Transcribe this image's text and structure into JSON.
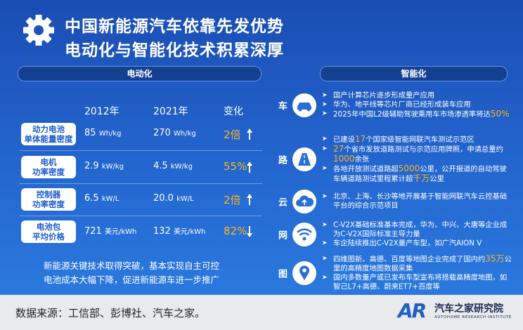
{
  "header": {
    "title": [
      "中国新能源汽车依靠先发优势",
      "电动化与智能化技术积累深厚"
    ]
  },
  "electrification": {
    "heading": "电动化",
    "columns": [
      "2012年",
      "2021年",
      "变化"
    ],
    "rows": [
      {
        "label": [
          "动力电池",
          "单体能量密度"
        ],
        "cells": [
          {
            "value": "85",
            "unit": "Wh/kg"
          },
          {
            "value": "270",
            "unit": "Wh/kg"
          }
        ],
        "change": "2倍",
        "trend": "up"
      },
      {
        "label": [
          "电机",
          "功率密度"
        ],
        "cells": [
          {
            "value": "2.9",
            "unit": "kW/kg"
          },
          {
            "value": "4.5",
            "unit": "kW/kg"
          }
        ],
        "change": "55%",
        "trend": "up"
      },
      {
        "label": [
          "控制器",
          "功率密度"
        ],
        "cells": [
          {
            "value": "6.5",
            "unit": "kW/L"
          },
          {
            "value": "20.0",
            "unit": "kW/L"
          }
        ],
        "change": "2倍",
        "trend": "up"
      },
      {
        "label": [
          "电池包",
          "平均价格"
        ],
        "cells": [
          {
            "value": "721",
            "unit": "美元/kWh"
          },
          {
            "value": "132",
            "unit": "美元/kWh"
          }
        ],
        "change": "82%",
        "trend": "down"
      }
    ],
    "summary": [
      "新能源关键技术取得突破，基本实现自主可控",
      "电池成本大幅下降，促进新能源车进一步推广"
    ]
  },
  "intelligence": {
    "heading": "智能化",
    "rows": [
      {
        "label": "车",
        "bullets": [
          [
            "国产计算芯片逐步形成量产应用"
          ],
          [
            "华为、地平线等芯片厂商已经形成装车应用"
          ],
          [
            "2025年中国L2级辅助驾驶乘用车市场渗透率将达",
            "50%"
          ]
        ]
      },
      {
        "label": "路",
        "bullets": [
          [
            "已建设",
            "17",
            "个国家级智能网联汽车测试示范区"
          ],
          [
            "",
            "27",
            "个省市发放道路测试与示范应用牌照，申请总量约",
            "1000",
            "余张"
          ],
          [
            "各地开放测试道路超",
            "5000",
            "公里，公开报道的自动驾驶车辆道路测试里程累计超",
            "千万",
            "公里"
          ]
        ]
      },
      {
        "label": "云",
        "bullets": [
          [
            "北京、上海、长沙等地开展基于智能网联汽车云控基础平台的综合示范项目"
          ]
        ]
      },
      {
        "label": "网",
        "bullets": [
          [
            "C-V2X基础标准基本完成，华为、中兴、大唐等企业成为C-V2X国际标准主导力量"
          ],
          [
            "车企陆续推出C-V2X量产车型，如广汽AION V"
          ]
        ]
      },
      {
        "label": "图",
        "bullets": [
          [
            "四维图新、高德、百度等地图企业完成了国内约",
            "35万",
            "公里的高精度地图数据采集"
          ],
          [
            "国内多数量产或已发布车型宣布将搭载高精度地图，如智己L7+高德、蔚来ET7+百度等"
          ]
        ]
      }
    ]
  },
  "footer": {
    "source": "数据来源：工信部、彭博社、汽车之家。",
    "logo": "AR",
    "brand": "汽车之家研究院",
    "brand_en": "AUTOHOME RESEARCH INSTITUTE"
  }
}
